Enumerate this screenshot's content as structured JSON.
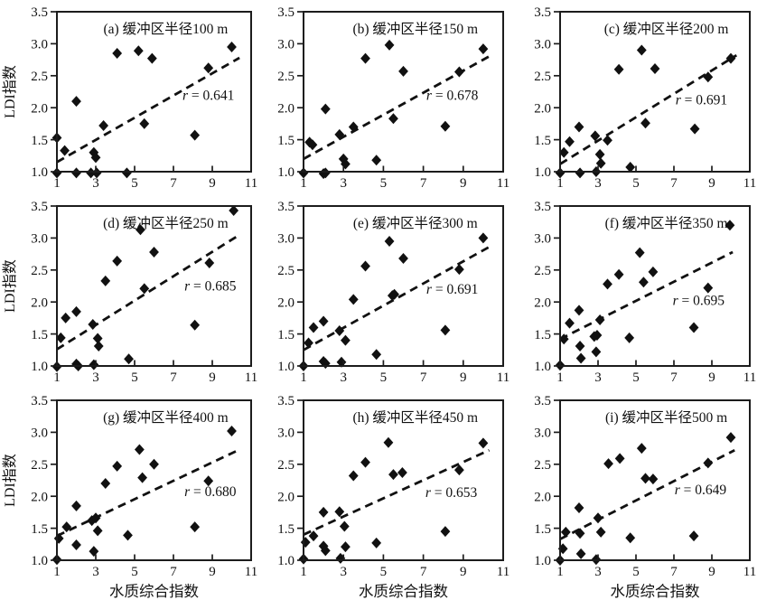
{
  "figure": {
    "y_axis_title": "LDI指数",
    "x_axis_title": "水质综合指数"
  },
  "chart_data": {
    "type": "scatter",
    "xlabel": "水质综合指数",
    "ylabel": "LDI指数",
    "xlim": [
      1,
      11
    ],
    "ylim": [
      1.0,
      3.5
    ],
    "xticks": [
      "1",
      "3",
      "5",
      "7",
      "9",
      "11"
    ],
    "yticks": [
      "1.0",
      "1.5",
      "2.0",
      "2.5",
      "3.0",
      "3.5"
    ],
    "grid": false,
    "marker": "filled-diamond",
    "trendline_style": "dashed",
    "color": "#111111",
    "panels": [
      {
        "panel": "a",
        "title": "(a) 缓冲区半径100 m",
        "r_value": "0.641",
        "r_label": "r = 0.641",
        "r_pos": [
          8.8,
          2.12
        ],
        "trend": [
          [
            1,
            1.15
          ],
          [
            10.4,
            2.78
          ]
        ],
        "points": [
          [
            1,
            0.98
          ],
          [
            1,
            1.53
          ],
          [
            1.4,
            1.33
          ],
          [
            2,
            2.1
          ],
          [
            2,
            0.98
          ],
          [
            2.75,
            0.98
          ],
          [
            2.9,
            1.3
          ],
          [
            3.0,
            1.22
          ],
          [
            3.05,
            0.98
          ],
          [
            3.4,
            1.72
          ],
          [
            4.1,
            2.85
          ],
          [
            4.6,
            0.98
          ],
          [
            5.2,
            2.89
          ],
          [
            5.5,
            1.75
          ],
          [
            5.9,
            2.77
          ],
          [
            8.1,
            1.57
          ],
          [
            8.8,
            2.62
          ],
          [
            10,
            2.95
          ]
        ]
      },
      {
        "panel": "b",
        "title": "(b) 缓冲区半径150 m",
        "r_value": "0.678",
        "r_label": "r = 0.678",
        "r_pos": [
          8.45,
          2.12
        ],
        "trend": [
          [
            1,
            1.2
          ],
          [
            10.4,
            2.82
          ]
        ],
        "points": [
          [
            1,
            0.98
          ],
          [
            1.3,
            1.46
          ],
          [
            1.45,
            1.42
          ],
          [
            2,
            0.97
          ],
          [
            2.1,
            0.98
          ],
          [
            2.1,
            1.98
          ],
          [
            2.8,
            1.58
          ],
          [
            3.0,
            1.2
          ],
          [
            3.1,
            1.12
          ],
          [
            3.5,
            1.7
          ],
          [
            4.1,
            2.77
          ],
          [
            4.65,
            1.18
          ],
          [
            5.3,
            2.98
          ],
          [
            5.5,
            1.83
          ],
          [
            6.0,
            2.57
          ],
          [
            8.1,
            1.71
          ],
          [
            8.8,
            2.56
          ],
          [
            10,
            2.92
          ]
        ]
      },
      {
        "panel": "c",
        "title": "(c) 缓冲区半径200 m",
        "r_value": "0.691",
        "r_label": "r = 0.691",
        "r_pos": [
          8.45,
          2.05
        ],
        "trend": [
          [
            1,
            1.12
          ],
          [
            10.3,
            2.82
          ]
        ],
        "points": [
          [
            1,
            0.98
          ],
          [
            1.2,
            1.3
          ],
          [
            1.5,
            1.47
          ],
          [
            2,
            1.7
          ],
          [
            2.05,
            0.98
          ],
          [
            2.85,
            1.56
          ],
          [
            2.9,
            1.0
          ],
          [
            3.1,
            1.27
          ],
          [
            3.15,
            1.13
          ],
          [
            3.5,
            1.49
          ],
          [
            4.1,
            2.6
          ],
          [
            4.7,
            1.07
          ],
          [
            5.3,
            2.9
          ],
          [
            5.5,
            1.76
          ],
          [
            6.0,
            2.61
          ],
          [
            8.1,
            1.67
          ],
          [
            8.8,
            2.48
          ],
          [
            10,
            2.77
          ]
        ]
      },
      {
        "panel": "d",
        "title": "(d) 缓冲区半径250 m",
        "r_value": "0.685",
        "r_label": "r = 0.685",
        "r_pos": [
          8.9,
          2.18
        ],
        "trend": [
          [
            1,
            1.26
          ],
          [
            10.4,
            3.05
          ]
        ],
        "points": [
          [
            1,
            0.99
          ],
          [
            1.2,
            1.44
          ],
          [
            1.45,
            1.75
          ],
          [
            2,
            1.85
          ],
          [
            2,
            1.03
          ],
          [
            2.1,
            1.0
          ],
          [
            2.85,
            1.65
          ],
          [
            2.9,
            1.02
          ],
          [
            3.1,
            1.43
          ],
          [
            3.15,
            1.31
          ],
          [
            3.5,
            2.33
          ],
          [
            4.1,
            2.64
          ],
          [
            4.7,
            1.11
          ],
          [
            5.3,
            3.13
          ],
          [
            5.5,
            2.21
          ],
          [
            6.0,
            2.78
          ],
          [
            8.1,
            1.64
          ],
          [
            8.85,
            2.61
          ],
          [
            10.1,
            3.43
          ]
        ]
      },
      {
        "panel": "e",
        "title": "(e) 缓冲区半径300 m",
        "r_value": "0.691",
        "r_label": "r = 0.691",
        "r_pos": [
          8.45,
          2.13
        ],
        "trend": [
          [
            1,
            1.25
          ],
          [
            10.3,
            2.86
          ]
        ],
        "points": [
          [
            1,
            1.0
          ],
          [
            1.25,
            1.36
          ],
          [
            1.5,
            1.6
          ],
          [
            2,
            1.7
          ],
          [
            2,
            1.07
          ],
          [
            2.1,
            1.04
          ],
          [
            2.8,
            1.55
          ],
          [
            2.9,
            1.06
          ],
          [
            3.1,
            1.4
          ],
          [
            3.5,
            2.04
          ],
          [
            4.1,
            2.56
          ],
          [
            4.65,
            1.18
          ],
          [
            5.3,
            2.95
          ],
          [
            5.45,
            2.1
          ],
          [
            5.55,
            2.12
          ],
          [
            6.0,
            2.68
          ],
          [
            8.1,
            1.56
          ],
          [
            8.8,
            2.51
          ],
          [
            10,
            3.0
          ]
        ]
      },
      {
        "panel": "f",
        "title": "(f) 缓冲区半径350 m",
        "r_value": "0.695",
        "r_label": "r = 0.695",
        "r_pos": [
          8.3,
          1.95
        ],
        "trend": [
          [
            1,
            1.42
          ],
          [
            10.1,
            2.78
          ]
        ],
        "points": [
          [
            1,
            1.01
          ],
          [
            1.2,
            1.42
          ],
          [
            1.5,
            1.67
          ],
          [
            2,
            1.87
          ],
          [
            2.05,
            1.31
          ],
          [
            2.1,
            1.12
          ],
          [
            2.8,
            1.46
          ],
          [
            2.95,
            1.48
          ],
          [
            2.9,
            1.22
          ],
          [
            3.1,
            1.72
          ],
          [
            3.5,
            2.28
          ],
          [
            4.1,
            2.43
          ],
          [
            4.65,
            1.44
          ],
          [
            5.2,
            2.77
          ],
          [
            5.4,
            2.31
          ],
          [
            5.9,
            2.47
          ],
          [
            8.05,
            1.6
          ],
          [
            8.8,
            2.22
          ],
          [
            9.95,
            3.2
          ]
        ]
      },
      {
        "panel": "g",
        "title": "(g) 缓冲区半径400 m",
        "r_value": "0.680",
        "r_label": "r = 0.680",
        "r_pos": [
          8.9,
          2.0
        ],
        "trend": [
          [
            1,
            1.38
          ],
          [
            10.4,
            2.73
          ]
        ],
        "points": [
          [
            1,
            1.01
          ],
          [
            1.1,
            1.34
          ],
          [
            1.5,
            1.52
          ],
          [
            2,
            1.85
          ],
          [
            2,
            1.24
          ],
          [
            2.8,
            1.62
          ],
          [
            2.9,
            1.14
          ],
          [
            3.0,
            1.66
          ],
          [
            3.1,
            1.46
          ],
          [
            3.5,
            2.2
          ],
          [
            4.1,
            2.47
          ],
          [
            4.65,
            1.39
          ],
          [
            5.25,
            2.73
          ],
          [
            5.4,
            2.29
          ],
          [
            6.0,
            2.5
          ],
          [
            8.1,
            1.52
          ],
          [
            8.8,
            2.24
          ],
          [
            10,
            3.02
          ]
        ]
      },
      {
        "panel": "h",
        "title": "(h) 缓冲区半径450 m",
        "r_value": "0.653",
        "r_label": "r = 0.653",
        "r_pos": [
          8.4,
          1.99
        ],
        "trend": [
          [
            1,
            1.4
          ],
          [
            10.3,
            2.72
          ]
        ],
        "points": [
          [
            1,
            1.02
          ],
          [
            1.1,
            1.28
          ],
          [
            1.5,
            1.38
          ],
          [
            2,
            1.75
          ],
          [
            2,
            1.22
          ],
          [
            2.1,
            1.15
          ],
          [
            2.8,
            1.76
          ],
          [
            2.85,
            1.03
          ],
          [
            3.05,
            1.53
          ],
          [
            3.1,
            1.21
          ],
          [
            3.5,
            2.32
          ],
          [
            4.1,
            2.53
          ],
          [
            4.65,
            1.27
          ],
          [
            5.25,
            2.84
          ],
          [
            5.5,
            2.34
          ],
          [
            5.95,
            2.37
          ],
          [
            8.1,
            1.45
          ],
          [
            8.8,
            2.41
          ],
          [
            10,
            2.83
          ]
        ]
      },
      {
        "panel": "i",
        "title": "(i) 缓冲区半径500 m",
        "r_value": "0.649",
        "r_label": "r = 0.649",
        "r_pos": [
          8.4,
          2.03
        ],
        "trend": [
          [
            1,
            1.33
          ],
          [
            10.2,
            2.72
          ]
        ],
        "points": [
          [
            1,
            1.0
          ],
          [
            1.15,
            1.18
          ],
          [
            1.3,
            1.44
          ],
          [
            2,
            1.82
          ],
          [
            2.05,
            1.42
          ],
          [
            2.1,
            1.1
          ],
          [
            2.9,
            1.01
          ],
          [
            3.0,
            1.66
          ],
          [
            3.15,
            1.44
          ],
          [
            3.55,
            2.51
          ],
          [
            4.15,
            2.59
          ],
          [
            4.7,
            1.35
          ],
          [
            5.3,
            2.75
          ],
          [
            5.5,
            2.28
          ],
          [
            5.9,
            2.27
          ],
          [
            8.05,
            1.38
          ],
          [
            8.8,
            2.52
          ],
          [
            10,
            2.92
          ]
        ]
      }
    ]
  }
}
